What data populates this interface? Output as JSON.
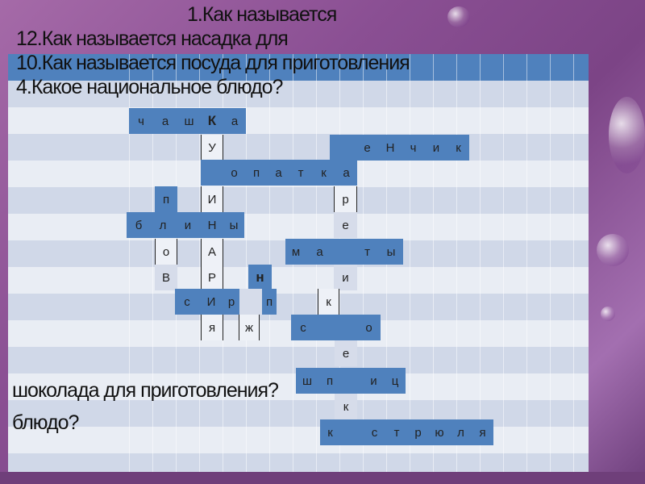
{
  "colors": {
    "header": "#4f81bd",
    "band": "#d0d8e8",
    "row": "#e9edf4",
    "filled_cell": "#4f81bd"
  },
  "questions": [
    "1.Как называется",
    "12.Как называется насадка для",
    "10.Как называется посуда для приготовления",
    "4.Какое национальное блюдо?",
    "шоколада для приготовления?",
    "блюдо?"
  ],
  "words": [
    {
      "letters": [
        "ч",
        "а",
        "ш",
        "К",
        "а"
      ]
    },
    {
      "letters": [
        "У"
      ]
    },
    {
      "letters": [
        "",
        "е",
        "Н",
        "ч",
        "и",
        "к"
      ]
    },
    {
      "letters": [
        "",
        "о",
        "п",
        "а",
        "т",
        "к",
        "а"
      ]
    },
    {
      "letters": [
        "п"
      ]
    },
    {
      "letters": [
        "И"
      ]
    },
    {
      "letters": [
        "р"
      ]
    },
    {
      "letters": [
        "б",
        "л",
        "и",
        "Н",
        "ы"
      ]
    },
    {
      "letters": [
        "е"
      ]
    },
    {
      "letters": [
        "о"
      ]
    },
    {
      "letters": [
        "А"
      ]
    },
    {
      "letters": [
        "м",
        "а",
        "",
        "т",
        "ы"
      ]
    },
    {
      "letters": [
        "В"
      ]
    },
    {
      "letters": [
        "Р"
      ]
    },
    {
      "letters": [
        "н"
      ]
    },
    {
      "letters": [
        "и"
      ]
    },
    {
      "letters": [
        "с",
        "И",
        "р",
        "",
        "п"
      ]
    },
    {
      "letters": [
        "к"
      ]
    },
    {
      "letters": [
        "я"
      ]
    },
    {
      "letters": [
        "ж"
      ]
    },
    {
      "letters": [
        "с",
        "",
        "",
        "о"
      ]
    },
    {
      "letters": [
        "е"
      ]
    },
    {
      "letters": [
        "ш",
        "п",
        "",
        "и",
        "ц"
      ]
    },
    {
      "letters": [
        "к"
      ]
    },
    {
      "letters": [
        "к",
        "",
        "с",
        "т",
        "р",
        "ю",
        "л",
        "я"
      ]
    }
  ]
}
